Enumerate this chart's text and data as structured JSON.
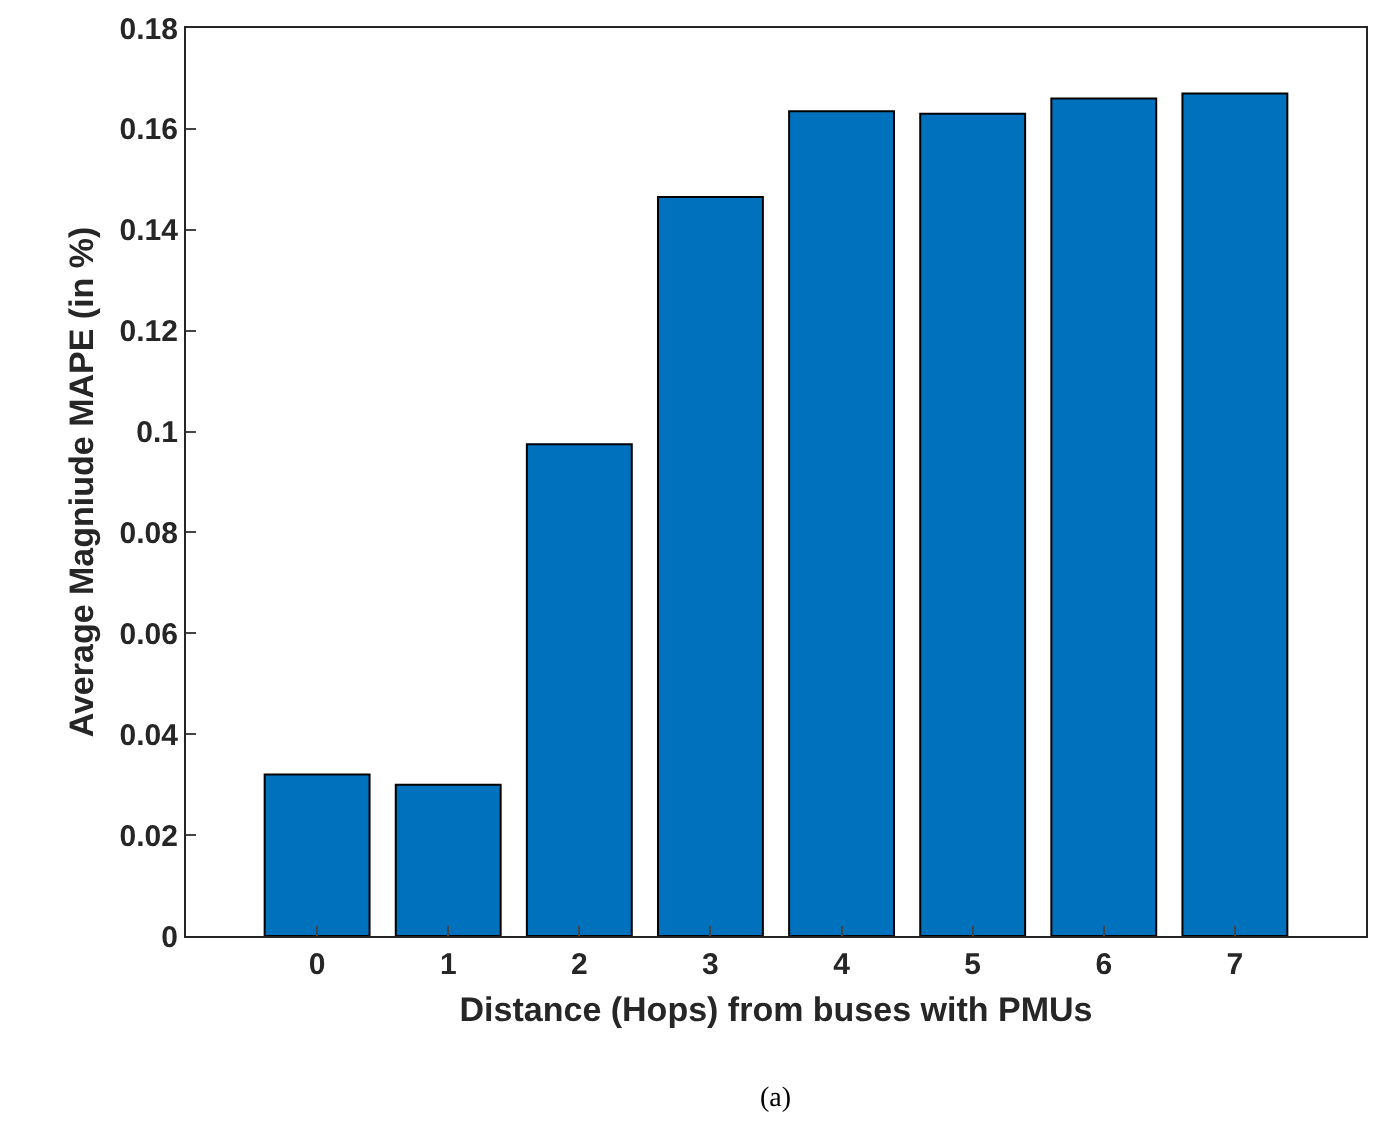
{
  "chart_data": {
    "type": "bar",
    "xlabel": "Distance (Hops) from buses with PMUs",
    "ylabel": "Average Magniude MAPE (in %)",
    "categories": [
      "0",
      "1",
      "2",
      "3",
      "4",
      "5",
      "6",
      "7"
    ],
    "values": [
      0.032,
      0.03,
      0.0975,
      0.1465,
      0.1635,
      0.163,
      0.166,
      0.167
    ],
    "color": "#0072bd",
    "ylim": [
      0,
      0.18
    ],
    "yticks": [
      0,
      0.02,
      0.04,
      0.06,
      0.08,
      0.1,
      0.12,
      0.14,
      0.16,
      0.18
    ],
    "grid": false,
    "annotations": [
      "(a)"
    ]
  }
}
